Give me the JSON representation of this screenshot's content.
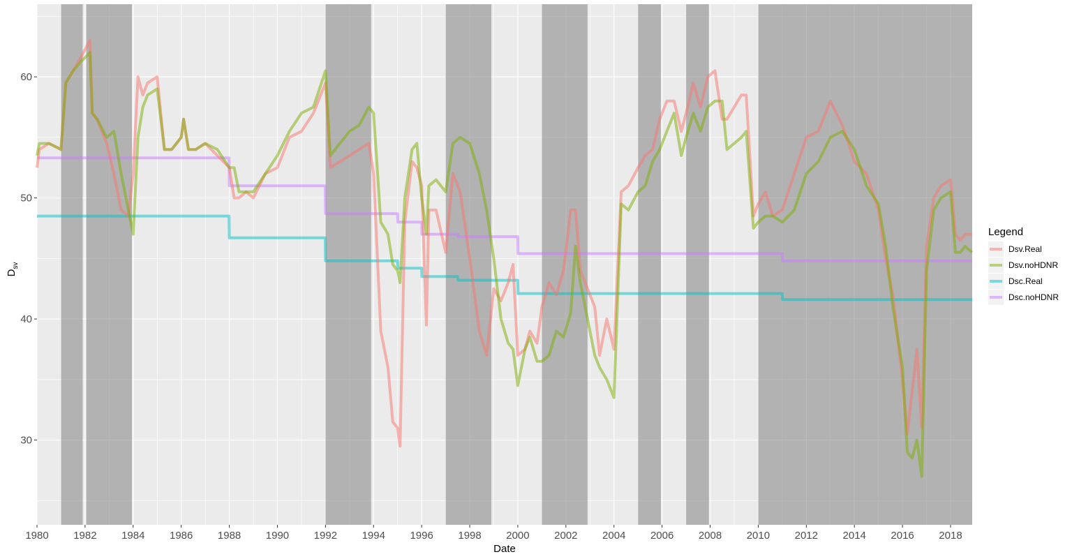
{
  "chart_data": {
    "type": "line",
    "title": "",
    "xlabel": "Date",
    "ylabel": "D",
    "ylabel_sub": "sv",
    "xlim": [
      1980,
      2018.9
    ],
    "ylim": [
      23,
      66
    ],
    "x_ticks": [
      1980,
      1982,
      1984,
      1986,
      1988,
      1990,
      1992,
      1994,
      1996,
      1998,
      2000,
      2002,
      2004,
      2006,
      2008,
      2010,
      2012,
      2014,
      2016,
      2018
    ],
    "x_tick_labels": [
      "1980",
      "1982",
      "1984",
      "1986",
      "1988",
      "1990",
      "1992",
      "1994",
      "1996",
      "1998",
      "2000",
      "2002",
      "2004",
      "2006",
      "2008",
      "2010",
      "2012",
      "2014",
      "2016",
      "2018"
    ],
    "y_ticks": [
      30,
      40,
      50,
      60
    ],
    "y_tick_labels": [
      "30",
      "40",
      "50",
      "60"
    ],
    "grid": true,
    "legend": {
      "title": "Legend",
      "position": "right"
    },
    "colors": {
      "panel_background": "#ebebeb",
      "grid": "#ffffff",
      "shade": "#8c8c8c",
      "Dsv.Real": "#f8766d",
      "Dsv.noHDNR": "#7cae00",
      "Dsc.Real": "#00bfc4",
      "Dsc.noHDNR": "#c77cff"
    },
    "shaded_periods": [
      [
        1981.0,
        1981.9
      ],
      [
        1982.05,
        1983.95
      ],
      [
        1992.0,
        1993.9
      ],
      [
        1997.0,
        1998.9
      ],
      [
        2001.0,
        2002.9
      ],
      [
        2005.0,
        2005.95
      ],
      [
        2007.0,
        2007.95
      ],
      [
        2010.0,
        2018.9
      ]
    ],
    "series": [
      {
        "name": "Dsv.Real",
        "x": [
          1980,
          1980.1,
          1980.5,
          1981,
          1981.2,
          1981.5,
          1981.8,
          1982.2,
          1982.3,
          1982.5,
          1982.9,
          1983.2,
          1983.5,
          1983.8,
          1984.0,
          1984.2,
          1984.4,
          1984.6,
          1985,
          1985.3,
          1985.6,
          1986,
          1986.1,
          1986.3,
          1986.6,
          1987,
          1987.5,
          1988,
          1988.2,
          1988.4,
          1988.7,
          1989,
          1989.5,
          1990,
          1990.5,
          1991,
          1991.5,
          1992,
          1992.2,
          1992.6,
          1993,
          1993.4,
          1993.8,
          1994,
          1994.3,
          1994.6,
          1994.8,
          1995.0,
          1995.1,
          1995.3,
          1995.6,
          1995.8,
          1996.0,
          1996.2,
          1996.3,
          1996.6,
          1997,
          1997.3,
          1997.6,
          1998,
          1998.4,
          1998.7,
          1999,
          1999.3,
          1999.6,
          1999.8,
          2000.0,
          2000.3,
          2000.5,
          2000.8,
          2001,
          2001.3,
          2001.6,
          2001.9,
          2002.2,
          2002.4,
          2002.6,
          2002.8,
          2003,
          2003.2,
          2003.4,
          2003.7,
          2004,
          2004.3,
          2004.6,
          2005,
          2005.3,
          2005.6,
          2005.9,
          2006.2,
          2006.5,
          2006.8,
          2007,
          2007.3,
          2007.6,
          2007.9,
          2008.2,
          2008.5,
          2008.7,
          2009,
          2009.3,
          2009.5,
          2009.8,
          2010.0,
          2010.3,
          2010.6,
          2011,
          2011.5,
          2012,
          2012.5,
          2013,
          2013.5,
          2014,
          2014.5,
          2015,
          2015.3,
          2015.6,
          2016.0,
          2016.2,
          2016.4,
          2016.6,
          2016.8,
          2017.0,
          2017.3,
          2017.6,
          2018.0,
          2018.2,
          2018.4,
          2018.6,
          2018.9
        ],
        "values": [
          52.5,
          54,
          54.5,
          54,
          59.5,
          60.5,
          61.5,
          63,
          57,
          56.5,
          54.5,
          52,
          49,
          48.5,
          52,
          60,
          58.5,
          59.5,
          60,
          54,
          54,
          55,
          56.5,
          54,
          54,
          54.5,
          53.5,
          52.5,
          50,
          50,
          50.5,
          50,
          52,
          52.5,
          55,
          55.5,
          57,
          59.5,
          52.5,
          53,
          53.5,
          54,
          54.5,
          52,
          39,
          36,
          31.5,
          31,
          29.5,
          48,
          53,
          52.5,
          51,
          39.5,
          49,
          49,
          45.5,
          52,
          50.5,
          45,
          39,
          37,
          42.5,
          41.5,
          43,
          44.5,
          37,
          37.5,
          39,
          38,
          41,
          43,
          42,
          44,
          49,
          49,
          44,
          43,
          42,
          41,
          37,
          40,
          37.5,
          50.5,
          51,
          52.5,
          53.5,
          54,
          56.5,
          58,
          58,
          55.5,
          57,
          59.5,
          57.5,
          60,
          60.5,
          56.5,
          56.5,
          57.5,
          58.5,
          58.5,
          48.5,
          49.5,
          50.5,
          48.5,
          49,
          52,
          55,
          55.5,
          58,
          56,
          53,
          52,
          49,
          45,
          42,
          35,
          30.5,
          34,
          37.5,
          31,
          46,
          50,
          51,
          51.5,
          47,
          46.5,
          47,
          47
        ]
      },
      {
        "name": "Dsv.noHDNR",
        "x": [
          1980,
          1980.1,
          1980.5,
          1981,
          1981.2,
          1981.5,
          1981.8,
          1982.2,
          1982.3,
          1982.5,
          1982.9,
          1983.2,
          1983.5,
          1983.8,
          1984.0,
          1984.2,
          1984.4,
          1984.6,
          1985,
          1985.3,
          1985.6,
          1986,
          1986.1,
          1986.3,
          1986.6,
          1987,
          1987.5,
          1988,
          1988.2,
          1988.4,
          1988.7,
          1989,
          1989.5,
          1990,
          1990.5,
          1991,
          1991.5,
          1992,
          1992.2,
          1992.6,
          1993,
          1993.4,
          1993.8,
          1994,
          1994.3,
          1994.6,
          1994.8,
          1995.0,
          1995.1,
          1995.3,
          1995.6,
          1995.8,
          1996.0,
          1996.2,
          1996.3,
          1996.6,
          1997,
          1997.3,
          1997.6,
          1998,
          1998.4,
          1998.7,
          1999,
          1999.3,
          1999.6,
          1999.8,
          2000.0,
          2000.3,
          2000.5,
          2000.8,
          2001,
          2001.3,
          2001.6,
          2001.9,
          2002.2,
          2002.4,
          2002.6,
          2002.8,
          2003,
          2003.2,
          2003.4,
          2003.7,
          2004,
          2004.3,
          2004.6,
          2005,
          2005.3,
          2005.6,
          2005.9,
          2006.2,
          2006.5,
          2006.8,
          2007,
          2007.3,
          2007.6,
          2007.9,
          2008.2,
          2008.5,
          2008.7,
          2009,
          2009.3,
          2009.5,
          2009.8,
          2010.0,
          2010.3,
          2010.6,
          2011,
          2011.5,
          2012,
          2012.5,
          2013,
          2013.5,
          2014,
          2014.5,
          2015,
          2015.3,
          2015.6,
          2016.0,
          2016.2,
          2016.4,
          2016.6,
          2016.8,
          2017.0,
          2017.3,
          2017.6,
          2018.0,
          2018.2,
          2018.4,
          2018.6,
          2018.9
        ],
        "values": [
          53.5,
          54.5,
          54.5,
          54,
          59.5,
          60.5,
          61.2,
          62,
          57,
          56.5,
          55,
          55.5,
          52,
          49,
          47,
          55,
          57.5,
          58.5,
          59,
          54,
          54,
          55,
          56.5,
          54,
          54,
          54.5,
          54,
          52.5,
          52.5,
          50.5,
          50.5,
          50.5,
          52,
          53.5,
          55.5,
          57,
          57.5,
          60.5,
          53.5,
          54.5,
          55.5,
          56,
          57.5,
          57,
          48,
          47,
          44.5,
          44,
          43,
          50,
          54,
          54.5,
          50,
          47,
          51,
          51.5,
          50.5,
          54.5,
          55,
          54.5,
          52,
          49,
          45,
          40,
          38,
          37.5,
          34.5,
          37.5,
          38.5,
          36.5,
          36.5,
          37,
          39,
          38.5,
          40.5,
          46,
          43,
          41,
          39,
          37,
          36,
          35,
          33.5,
          49.5,
          49,
          50.5,
          51,
          53,
          54,
          55.5,
          57,
          53.5,
          55,
          57,
          55.5,
          57.5,
          58,
          58,
          54,
          54.5,
          55,
          55.5,
          47.5,
          48,
          48.5,
          48.5,
          48,
          49,
          52,
          53,
          55,
          55.5,
          54,
          51,
          49.5,
          46,
          41,
          36,
          29,
          28.5,
          30,
          27,
          44,
          49,
          50,
          50.5,
          45.5,
          45.5,
          46,
          45.5
        ]
      },
      {
        "name": "Dsc.Real",
        "x": [
          1980,
          1987.99,
          1988.0,
          1991.99,
          1992.0,
          1995.0,
          1995.01,
          1996.0,
          1996.01,
          1997.5,
          1997.51,
          2000.0,
          2000.01,
          2011.0,
          2011.01,
          2018.9
        ],
        "values": [
          48.5,
          48.5,
          46.7,
          46.7,
          44.8,
          44.8,
          44.2,
          44.2,
          43.5,
          43.5,
          43.2,
          43.2,
          42.1,
          42.1,
          41.6,
          41.6
        ]
      },
      {
        "name": "Dsc.noHDNR",
        "x": [
          1980,
          1987.99,
          1988.0,
          1991.99,
          1992.0,
          1995.0,
          1995.01,
          1996.0,
          1996.01,
          1997.5,
          1997.51,
          2000.0,
          2000.01,
          2011.0,
          2011.01,
          2018.9
        ],
        "values": [
          53.3,
          53.3,
          51.0,
          51.0,
          48.7,
          48.7,
          48.0,
          48.0,
          47.0,
          47.0,
          46.8,
          46.8,
          45.4,
          45.4,
          44.8,
          44.8
        ]
      }
    ]
  }
}
